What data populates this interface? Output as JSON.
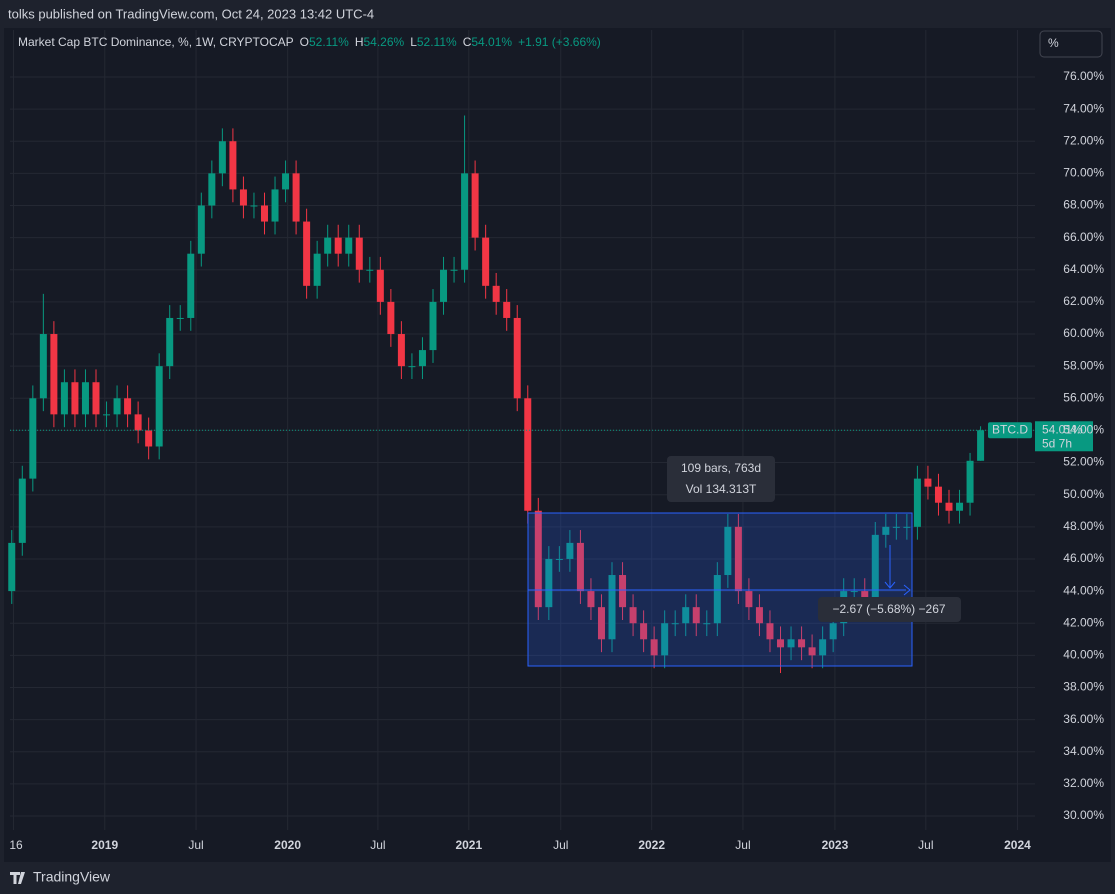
{
  "header": {
    "published": "tolks published on TradingView.com, Oct 24, 2023 13:42 UTC-4",
    "symbol": "Market Cap BTC Dominance, %, 1W, CRYPTOCAP",
    "o_key": "O",
    "o": "52.11%",
    "h_key": "H",
    "h": "54.26%",
    "l_key": "L",
    "l": "52.11%",
    "c_key": "C",
    "c": "54.01%",
    "change": "+1.91 (+3.66%)"
  },
  "scale_button": "%",
  "price_tag": {
    "name": "BTC.D",
    "value": "54.01%",
    "countdown": "5d 7h"
  },
  "measure": {
    "bars": "109 bars, 763d",
    "volume": "Vol 134.313T",
    "change": "−2.67 (−5.68%) −267"
  },
  "footer": {
    "brand": "TradingView"
  },
  "chart_data": {
    "type": "candlestick",
    "up_color": "#089981",
    "down_color": "#f23645",
    "grid": true,
    "last_price_line": true,
    "x": [
      -26.5,
      -23.5,
      -20.5,
      -17.5,
      -14.5,
      -11.5,
      -8.5,
      -5.5,
      -2.5,
      0.5,
      3.5,
      6.5,
      9.5,
      12.5,
      15.5,
      18.5,
      21.5,
      24.5,
      27.5,
      30.5,
      33.5,
      36.5,
      39.5,
      42.5,
      45.5,
      48.5,
      51.5,
      54.5,
      57.5,
      60.5,
      63.5,
      66.5,
      69.5,
      72.5,
      75.5,
      78.5,
      81.5,
      84.5,
      87.5,
      90.5,
      93.5,
      96.5,
      99.5,
      102.5,
      105.5,
      108.5,
      111.5,
      114.5,
      117.5,
      120.5,
      123.5,
      126.5,
      129.5,
      132.5,
      135.5,
      138.5,
      141.5,
      144.5,
      147.5,
      150.5,
      153.5,
      156.5,
      159.5,
      162.5,
      165.5,
      168.5,
      171.5,
      174.5,
      177.5,
      180.5,
      183.5,
      186.5,
      189.5,
      192.5,
      195.5,
      198.5,
      201.5,
      204.5,
      207.5,
      210.5,
      213.5,
      216.5,
      219.5,
      222.5,
      225.5,
      228.5,
      231.5,
      234.5,
      237.5,
      240.5,
      243.5,
      246.5,
      249.5
    ],
    "open": [
      44,
      47,
      51,
      56,
      60,
      55,
      57,
      55,
      57,
      55,
      55,
      56,
      55,
      54,
      53,
      58,
      61,
      61,
      65,
      68,
      70,
      72,
      69,
      68,
      68,
      67,
      69,
      70,
      67,
      63,
      65,
      66,
      65,
      66,
      64,
      64,
      62,
      60,
      58,
      58,
      59,
      62,
      64,
      64,
      70,
      66,
      63,
      62,
      61,
      56,
      49,
      43,
      46,
      46,
      47,
      44,
      43,
      41,
      45,
      43,
      42,
      41,
      40,
      42,
      42,
      43,
      42,
      42,
      45,
      48,
      44,
      43,
      42,
      41,
      40.5,
      41,
      40.5,
      40,
      41,
      42,
      44,
      44,
      43.5,
      47.5,
      48,
      48,
      48,
      51,
      50.5,
      49.5,
      49,
      49.5,
      52.11
    ],
    "high": [
      47.8,
      51.8,
      56.8,
      62.5,
      60.8,
      57.8,
      57.8,
      57.8,
      57.8,
      55.8,
      56.8,
      56.8,
      55.8,
      54.8,
      58.8,
      61.8,
      61.8,
      65.8,
      68.8,
      70.8,
      72.8,
      72.8,
      69.8,
      68.8,
      68.8,
      69.8,
      70.8,
      70.8,
      67.8,
      65.8,
      66.8,
      66.8,
      66.8,
      66.8,
      64.8,
      64.8,
      62.8,
      60.8,
      58.8,
      59.8,
      62.8,
      64.8,
      64.8,
      73.6,
      70.8,
      66.8,
      63.8,
      62.8,
      61.8,
      56.8,
      49.8,
      46.8,
      46.8,
      47.8,
      47.8,
      44.8,
      43.8,
      45.8,
      45.8,
      43.8,
      42.8,
      41.8,
      42.8,
      42.8,
      43.8,
      43.8,
      42.8,
      45.8,
      48.8,
      48.8,
      44.8,
      43.8,
      42.8,
      41.8,
      41.8,
      41.8,
      41.3,
      41.8,
      42.8,
      44.8,
      44.8,
      44.8,
      48.3,
      48.8,
      48.8,
      48.8,
      51.8,
      51.8,
      51.3,
      50.3,
      50.3,
      52.6,
      54.26
    ],
    "low": [
      43.2,
      46.2,
      50.2,
      55.2,
      54.2,
      54.2,
      54.2,
      54.2,
      54.2,
      54.2,
      54.2,
      54.2,
      53.2,
      52.2,
      52.2,
      57.2,
      60.2,
      60.2,
      64.2,
      67.2,
      69.2,
      68.2,
      67.2,
      67.2,
      66.2,
      66.2,
      68.2,
      66.2,
      62.2,
      62.2,
      64.2,
      64.2,
      64.2,
      63.2,
      63.2,
      61.2,
      59.2,
      57.2,
      57.2,
      57.2,
      58.2,
      61.2,
      63.2,
      63.2,
      65.2,
      62.2,
      61.2,
      60.2,
      55.2,
      48.2,
      42.2,
      42.2,
      45.2,
      45.2,
      43.2,
      42.2,
      40.2,
      40.2,
      42.2,
      41.2,
      40.2,
      39.2,
      39.2,
      41.2,
      41.2,
      41.2,
      41.2,
      41.2,
      44.2,
      43.2,
      42.2,
      41.2,
      40.2,
      38.9,
      39.7,
      39.7,
      39.2,
      39.2,
      40.2,
      41.2,
      43.2,
      42.7,
      42.7,
      46.7,
      47.2,
      47.2,
      47.2,
      49.7,
      48.7,
      48.2,
      48.2,
      48.7,
      52.11
    ],
    "close": [
      47,
      51,
      56,
      60,
      55,
      57,
      55,
      57,
      55,
      55,
      56,
      55,
      54,
      53,
      58,
      61,
      61,
      65,
      68,
      70,
      72,
      69,
      68,
      68,
      67,
      69,
      70,
      67,
      63,
      65,
      66,
      65,
      66,
      64,
      64,
      62,
      60,
      58,
      58,
      59,
      62,
      64,
      64,
      70,
      66,
      63,
      62,
      61,
      56,
      49,
      43,
      46,
      46,
      47,
      44,
      43,
      41,
      45,
      43,
      42,
      41,
      40,
      42,
      42,
      43,
      42,
      42,
      45,
      48,
      44,
      43,
      42,
      41,
      40.5,
      41,
      40.5,
      40,
      41,
      42,
      44,
      44,
      43.5,
      47.5,
      48,
      48,
      48,
      51,
      50.5,
      49.5,
      49,
      49.5,
      52.11,
      54.01
    ],
    "xlim": [
      -27,
      265
    ],
    "xticks": [
      {
        "value": -26,
        "label": "16"
      },
      {
        "value": 0,
        "label": "2019"
      },
      {
        "value": 26,
        "label": "Jul"
      },
      {
        "value": 52.1,
        "label": "2020"
      },
      {
        "value": 77.8,
        "label": "Jul"
      },
      {
        "value": 103.7,
        "label": "2021"
      },
      {
        "value": 129.9,
        "label": "Jul"
      },
      {
        "value": 155.8,
        "label": "2022"
      },
      {
        "value": 181.8,
        "label": "Jul"
      },
      {
        "value": 208,
        "label": "2023"
      },
      {
        "value": 233.9,
        "label": "Jul"
      },
      {
        "value": 260,
        "label": "2024"
      }
    ],
    "ylim": [
      29.13,
      77.18
    ],
    "yticks": [
      {
        "value": 30,
        "label": "30.00%"
      },
      {
        "value": 32,
        "label": "32.00%"
      },
      {
        "value": 34,
        "label": "34.00%"
      },
      {
        "value": 36,
        "label": "36.00%"
      },
      {
        "value": 38,
        "label": "38.00%"
      },
      {
        "value": 40,
        "label": "40.00%"
      },
      {
        "value": 42,
        "label": "42.00%"
      },
      {
        "value": 44,
        "label": "44.00%"
      },
      {
        "value": 46,
        "label": "46.00%"
      },
      {
        "value": 48,
        "label": "48.00%"
      },
      {
        "value": 50,
        "label": "50.00%"
      },
      {
        "value": 52,
        "label": "52.00%"
      },
      {
        "value": 54,
        "label": "54.00%"
      },
      {
        "value": 56,
        "label": "56.00%"
      },
      {
        "value": 58,
        "label": "58.00%"
      },
      {
        "value": 60,
        "label": "60.00%"
      },
      {
        "value": 62,
        "label": "62.00%"
      },
      {
        "value": 64,
        "label": "64.00%"
      },
      {
        "value": 66,
        "label": "66.00%"
      },
      {
        "value": 68,
        "label": "68.00%"
      },
      {
        "value": 70,
        "label": "70.00%"
      },
      {
        "value": 72,
        "label": "72.00%"
      },
      {
        "value": 74,
        "label": "74.00%"
      },
      {
        "value": 76,
        "label": "76.00%"
      }
    ]
  }
}
